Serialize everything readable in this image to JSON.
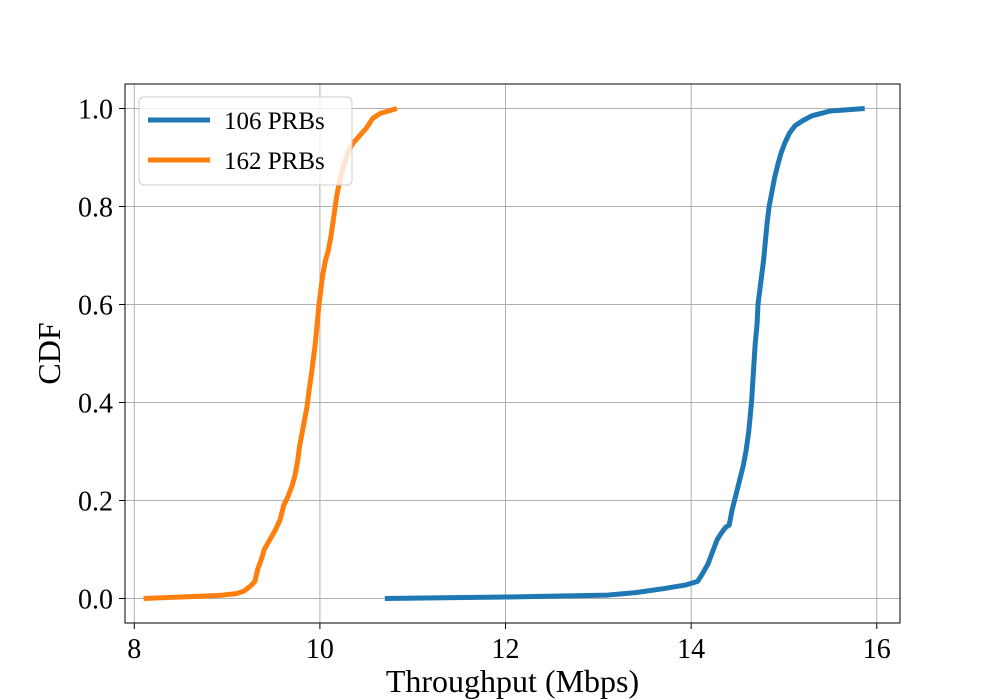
{
  "chart_data": {
    "type": "line",
    "title": "",
    "xlabel": "Throughput (Mbps)",
    "ylabel": "CDF",
    "xlim": [
      7.9,
      16.25
    ],
    "ylim": [
      -0.05,
      1.05
    ],
    "xticks": [
      8,
      10,
      12,
      14,
      16
    ],
    "yticks": [
      0.0,
      0.2,
      0.4,
      0.6,
      0.8,
      1.0
    ],
    "xtick_labels": [
      "8",
      "10",
      "12",
      "14",
      "16"
    ],
    "ytick_labels": [
      "0.0",
      "0.2",
      "0.4",
      "0.6",
      "0.8",
      "1.0"
    ],
    "grid": true,
    "legend_position": "top-left",
    "series": [
      {
        "name": "106 PRBs",
        "color": "#1f77b4",
        "points": [
          [
            10.7,
            0.0
          ],
          [
            12.0,
            0.003
          ],
          [
            13.1,
            0.007
          ],
          [
            13.4,
            0.012
          ],
          [
            13.7,
            0.02
          ],
          [
            13.95,
            0.028
          ],
          [
            14.07,
            0.035
          ],
          [
            14.12,
            0.05
          ],
          [
            14.18,
            0.07
          ],
          [
            14.22,
            0.09
          ],
          [
            14.28,
            0.12
          ],
          [
            14.33,
            0.135
          ],
          [
            14.37,
            0.145
          ],
          [
            14.41,
            0.15
          ],
          [
            14.44,
            0.18
          ],
          [
            14.48,
            0.21
          ],
          [
            14.52,
            0.24
          ],
          [
            14.56,
            0.27
          ],
          [
            14.59,
            0.3
          ],
          [
            14.62,
            0.34
          ],
          [
            14.65,
            0.4
          ],
          [
            14.67,
            0.46
          ],
          [
            14.69,
            0.52
          ],
          [
            14.71,
            0.56
          ],
          [
            14.72,
            0.6
          ],
          [
            14.74,
            0.63
          ],
          [
            14.76,
            0.66
          ],
          [
            14.78,
            0.69
          ],
          [
            14.8,
            0.73
          ],
          [
            14.82,
            0.77
          ],
          [
            14.84,
            0.8
          ],
          [
            14.87,
            0.83
          ],
          [
            14.9,
            0.86
          ],
          [
            14.94,
            0.89
          ],
          [
            14.97,
            0.91
          ],
          [
            15.01,
            0.93
          ],
          [
            15.06,
            0.95
          ],
          [
            15.12,
            0.965
          ],
          [
            15.2,
            0.975
          ],
          [
            15.3,
            0.985
          ],
          [
            15.5,
            0.995
          ],
          [
            15.87,
            1.0
          ]
        ]
      },
      {
        "name": "162 PRBs",
        "color": "#ff7f0e",
        "points": [
          [
            8.1,
            0.0
          ],
          [
            8.5,
            0.003
          ],
          [
            8.9,
            0.006
          ],
          [
            9.1,
            0.01
          ],
          [
            9.18,
            0.015
          ],
          [
            9.25,
            0.025
          ],
          [
            9.3,
            0.035
          ],
          [
            9.33,
            0.06
          ],
          [
            9.37,
            0.08
          ],
          [
            9.4,
            0.1
          ],
          [
            9.46,
            0.12
          ],
          [
            9.52,
            0.14
          ],
          [
            9.57,
            0.16
          ],
          [
            9.61,
            0.19
          ],
          [
            9.66,
            0.21
          ],
          [
            9.7,
            0.23
          ],
          [
            9.73,
            0.25
          ],
          [
            9.76,
            0.28
          ],
          [
            9.78,
            0.31
          ],
          [
            9.8,
            0.33
          ],
          [
            9.83,
            0.36
          ],
          [
            9.86,
            0.39
          ],
          [
            9.88,
            0.42
          ],
          [
            9.91,
            0.46
          ],
          [
            9.93,
            0.49
          ],
          [
            9.95,
            0.52
          ],
          [
            9.97,
            0.56
          ],
          [
            9.99,
            0.6
          ],
          [
            10.01,
            0.63
          ],
          [
            10.03,
            0.66
          ],
          [
            10.06,
            0.69
          ],
          [
            10.09,
            0.71
          ],
          [
            10.12,
            0.74
          ],
          [
            10.15,
            0.78
          ],
          [
            10.18,
            0.82
          ],
          [
            10.21,
            0.85
          ],
          [
            10.25,
            0.88
          ],
          [
            10.3,
            0.91
          ],
          [
            10.36,
            0.93
          ],
          [
            10.43,
            0.945
          ],
          [
            10.5,
            0.96
          ],
          [
            10.57,
            0.98
          ],
          [
            10.65,
            0.99
          ],
          [
            10.83,
            1.0
          ]
        ]
      }
    ]
  }
}
